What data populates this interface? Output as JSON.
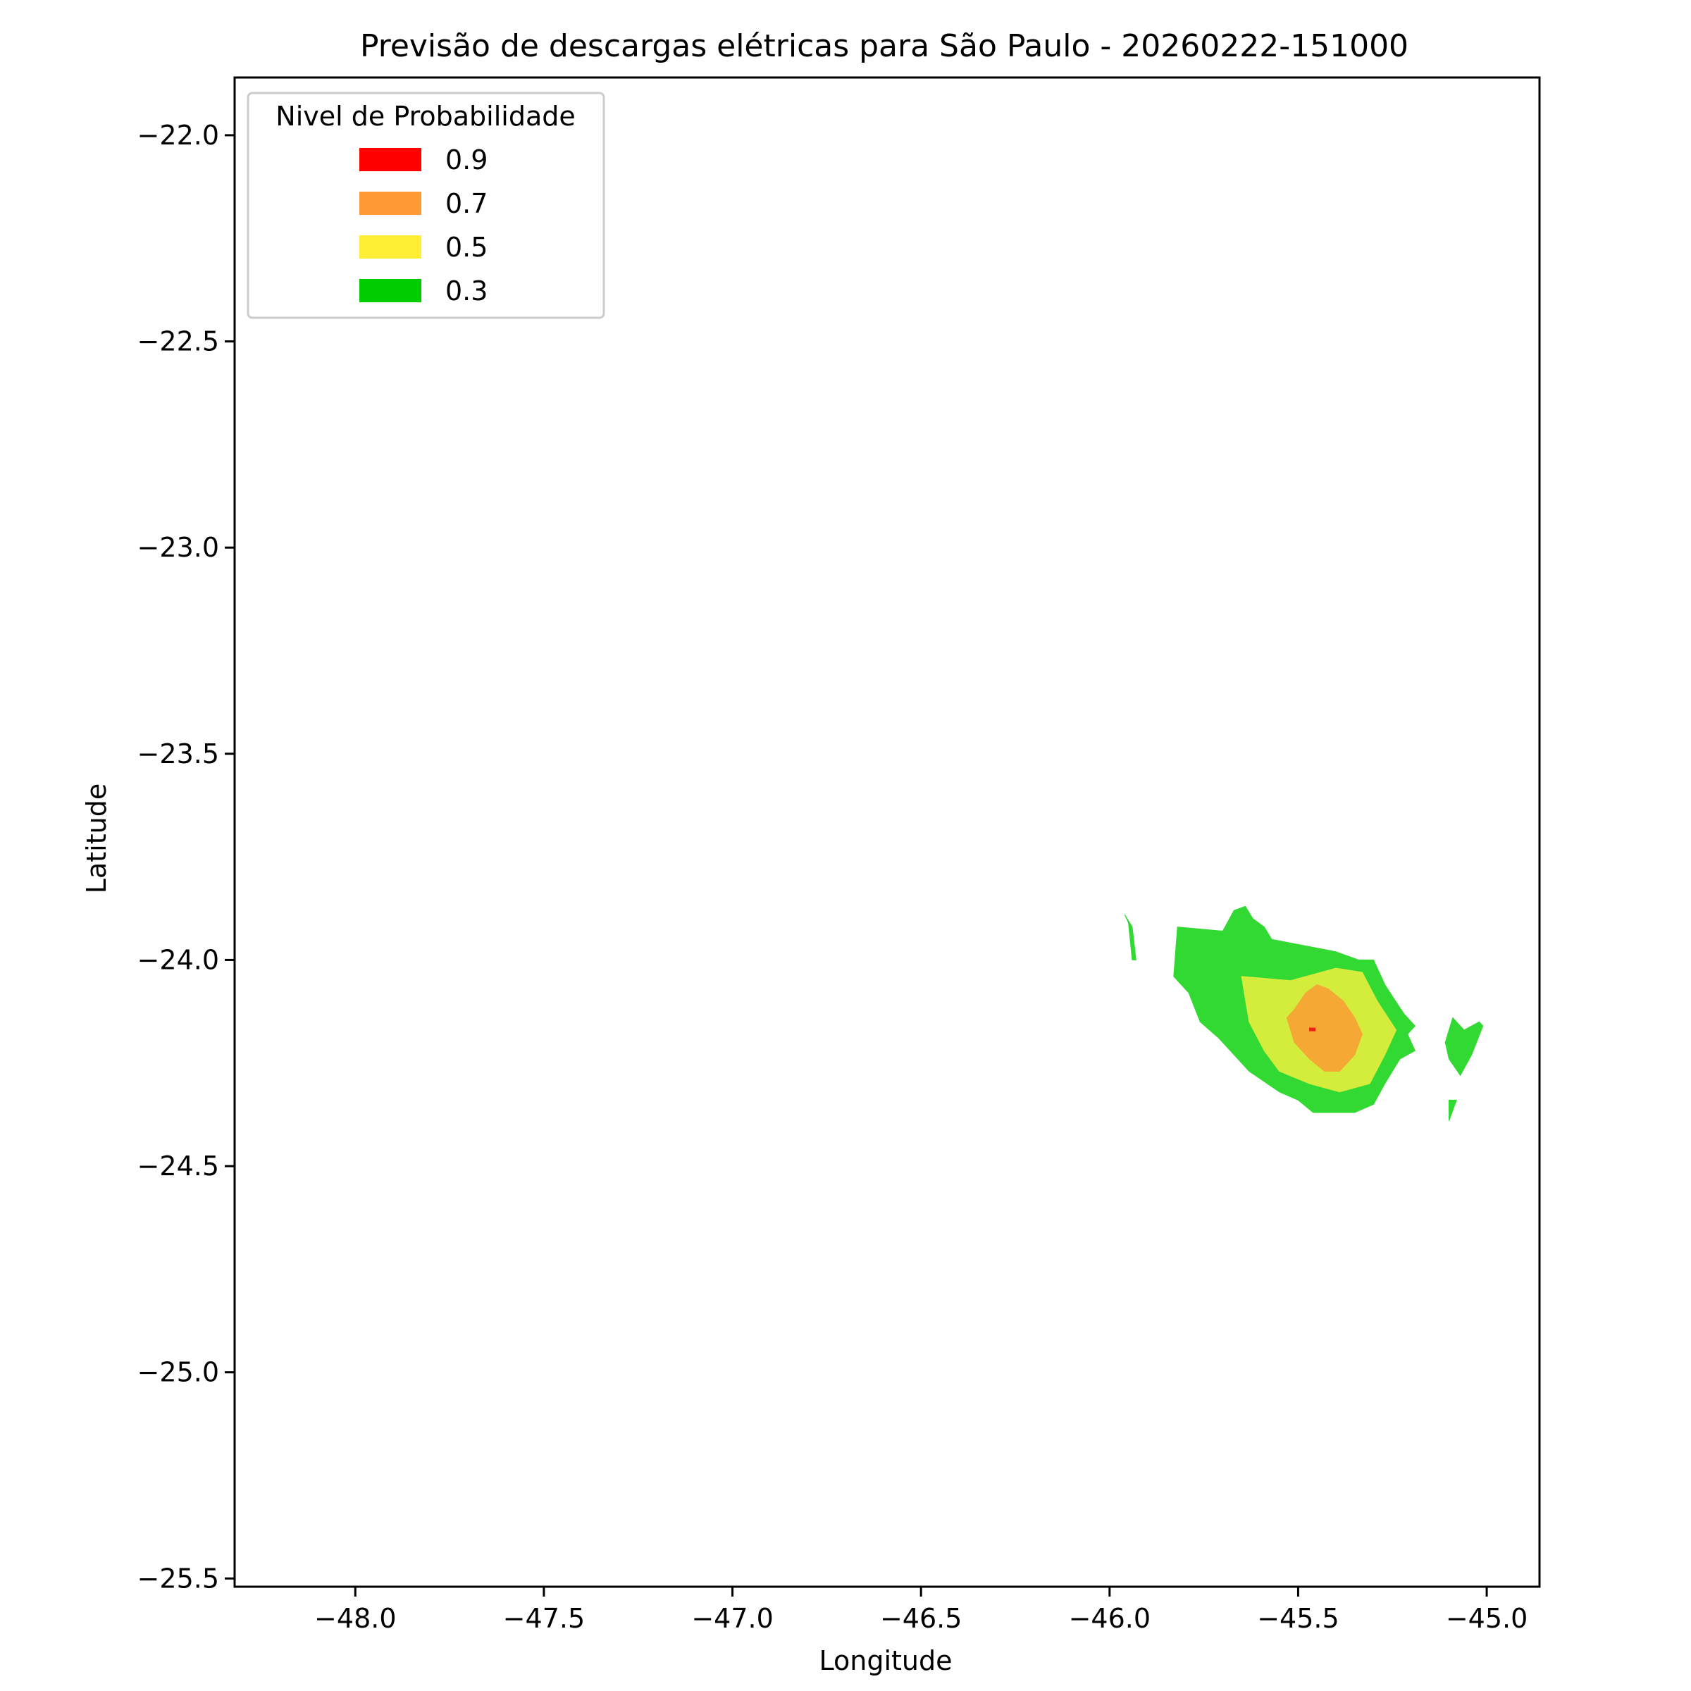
{
  "chart_data": {
    "type": "contour",
    "title": "Previsão de descargas elétricas para São Paulo - 20260222-151000",
    "xlabel": "Longitude",
    "ylabel": "Latitude",
    "xlim": [
      -48.32,
      -44.86
    ],
    "ylim": [
      -25.52,
      -21.86
    ],
    "xticks": [
      -48.0,
      -47.5,
      -47.0,
      -46.5,
      -46.0,
      -45.5,
      -45.0
    ],
    "xtick_labels": [
      "−48.0",
      "−47.5",
      "−47.0",
      "−46.5",
      "−46.0",
      "−45.5",
      "−45.0"
    ],
    "yticks": [
      -22.0,
      -22.5,
      -23.0,
      -23.5,
      -24.0,
      -24.5,
      -25.0,
      -25.5
    ],
    "ytick_labels": [
      "−22.0",
      "−22.5",
      "−23.0",
      "−23.5",
      "−24.0",
      "−24.5",
      "−25.0",
      "−25.5"
    ],
    "grid": false,
    "legend": {
      "title": "Nivel de Probabilidade",
      "placement": "upper-left",
      "entries": [
        {
          "label": "0.9",
          "color": "#ff0000"
        },
        {
          "label": "0.7",
          "color": "#ff9933"
        },
        {
          "label": "0.5",
          "color": "#ffee33"
        },
        {
          "label": "0.3",
          "color": "#00cc00"
        }
      ]
    },
    "contour_regions": [
      {
        "level": "0.3",
        "color": "#33d933",
        "polygon": [
          [
            -45.82,
            -23.92
          ],
          [
            -45.7,
            -23.93
          ],
          [
            -45.67,
            -23.88
          ],
          [
            -45.64,
            -23.87
          ],
          [
            -45.62,
            -23.9
          ],
          [
            -45.59,
            -23.92
          ],
          [
            -45.57,
            -23.95
          ],
          [
            -45.4,
            -23.98
          ],
          [
            -45.34,
            -24.0
          ],
          [
            -45.3,
            -24.0
          ],
          [
            -45.27,
            -24.06
          ],
          [
            -45.22,
            -24.13
          ],
          [
            -45.19,
            -24.16
          ],
          [
            -45.21,
            -24.18
          ],
          [
            -45.19,
            -24.22
          ],
          [
            -45.23,
            -24.24
          ],
          [
            -45.27,
            -24.3
          ],
          [
            -45.3,
            -24.35
          ],
          [
            -45.35,
            -24.37
          ],
          [
            -45.46,
            -24.37
          ],
          [
            -45.5,
            -24.34
          ],
          [
            -45.55,
            -24.32
          ],
          [
            -45.63,
            -24.27
          ],
          [
            -45.68,
            -24.22
          ],
          [
            -45.71,
            -24.19
          ],
          [
            -45.76,
            -24.15
          ],
          [
            -45.79,
            -24.08
          ],
          [
            -45.83,
            -24.04
          ]
        ]
      },
      {
        "level": "0.3",
        "color": "#33d933",
        "polygon": [
          [
            -45.09,
            -24.14
          ],
          [
            -45.06,
            -24.17
          ],
          [
            -45.02,
            -24.15
          ],
          [
            -45.01,
            -24.16
          ],
          [
            -45.04,
            -24.23
          ],
          [
            -45.07,
            -24.28
          ],
          [
            -45.1,
            -24.24
          ],
          [
            -45.11,
            -24.2
          ]
        ]
      },
      {
        "level": "0.3",
        "color": "#33d933",
        "polygon": [
          [
            -45.1,
            -24.34
          ],
          [
            -45.08,
            -24.34
          ],
          [
            -45.1,
            -24.39
          ]
        ]
      },
      {
        "level": "0.3",
        "color": "#33d933",
        "polygon": [
          [
            -45.96,
            -23.89
          ],
          [
            -45.95,
            -23.91
          ],
          [
            -45.94,
            -24.0
          ],
          [
            -45.93,
            -24.0
          ],
          [
            -45.94,
            -23.92
          ]
        ]
      },
      {
        "level": "0.5",
        "color": "#d4ed3c",
        "polygon": [
          [
            -45.65,
            -24.04
          ],
          [
            -45.52,
            -24.05
          ],
          [
            -45.4,
            -24.02
          ],
          [
            -45.33,
            -24.03
          ],
          [
            -45.29,
            -24.1
          ],
          [
            -45.24,
            -24.17
          ],
          [
            -45.27,
            -24.23
          ],
          [
            -45.31,
            -24.3
          ],
          [
            -45.39,
            -24.32
          ],
          [
            -45.47,
            -24.3
          ],
          [
            -45.55,
            -24.27
          ],
          [
            -45.59,
            -24.22
          ],
          [
            -45.63,
            -24.15
          ]
        ]
      },
      {
        "level": "0.7",
        "color": "#f5a833",
        "polygon": [
          [
            -45.51,
            -24.12
          ],
          [
            -45.48,
            -24.08
          ],
          [
            -45.45,
            -24.06
          ],
          [
            -45.42,
            -24.07
          ],
          [
            -45.38,
            -24.1
          ],
          [
            -45.35,
            -24.14
          ],
          [
            -45.33,
            -24.18
          ],
          [
            -45.35,
            -24.23
          ],
          [
            -45.39,
            -24.27
          ],
          [
            -45.43,
            -24.27
          ],
          [
            -45.47,
            -24.24
          ],
          [
            -45.51,
            -24.2
          ],
          [
            -45.53,
            -24.14
          ]
        ]
      },
      {
        "level": "0.9",
        "color": "#ee2211",
        "polygon": [
          [
            -45.47,
            -24.165
          ],
          [
            -45.455,
            -24.165
          ],
          [
            -45.455,
            -24.172
          ],
          [
            -45.47,
            -24.172
          ]
        ]
      }
    ]
  }
}
